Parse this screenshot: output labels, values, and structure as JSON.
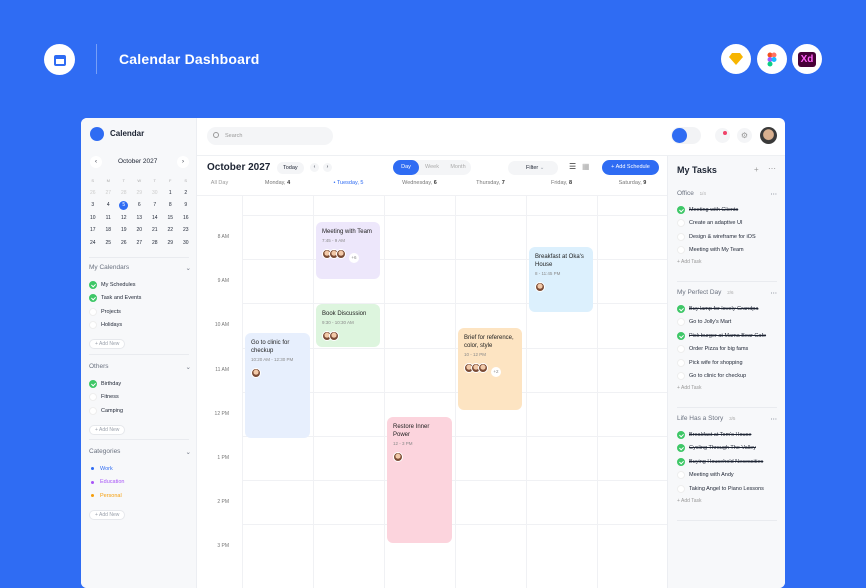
{
  "banner": {
    "title": "Calendar Dashboard",
    "tools": [
      {
        "name": "sketch",
        "color": "#f7b500"
      },
      {
        "name": "figma",
        "color": "#a259ff"
      },
      {
        "name": "xd",
        "label": "Xd",
        "color": "#ff61f6"
      }
    ]
  },
  "app": {
    "name": "Calendar",
    "search_placeholder": "Search"
  },
  "mini_calendar": {
    "month": "October 2027",
    "weekdays": [
      "S",
      "M",
      "T",
      "W",
      "T",
      "F",
      "S"
    ],
    "weeks": [
      [
        "26",
        "27",
        "28",
        "29",
        "30",
        "1",
        "2"
      ],
      [
        "3",
        "4",
        "5",
        "6",
        "7",
        "8",
        "9"
      ],
      [
        "10",
        "11",
        "12",
        "13",
        "14",
        "15",
        "16"
      ],
      [
        "17",
        "18",
        "19",
        "20",
        "21",
        "22",
        "23"
      ],
      [
        "24",
        "25",
        "26",
        "27",
        "28",
        "29",
        "30"
      ]
    ],
    "selected": "5"
  },
  "my_calendars": {
    "title": "My Calendars",
    "items": [
      {
        "label": "My Schedules",
        "checked": true
      },
      {
        "label": "Task and Events",
        "checked": true
      },
      {
        "label": "Projects",
        "checked": false
      },
      {
        "label": "Holidays",
        "checked": false
      }
    ],
    "add": "Add New"
  },
  "others": {
    "title": "Others",
    "items": [
      {
        "label": "Birthday",
        "checked": true
      },
      {
        "label": "Fitness",
        "checked": false
      },
      {
        "label": "Camping",
        "checked": false
      }
    ],
    "add": "Add New"
  },
  "categories": {
    "title": "Categories",
    "items": [
      {
        "label": "Work",
        "color": "#2f6cf3"
      },
      {
        "label": "Education",
        "color": "#a855f7"
      },
      {
        "label": "Personal",
        "color": "#f59e0b"
      }
    ],
    "add": "Add New"
  },
  "toolbar": {
    "month": "October 2027",
    "today": "Today",
    "views": [
      "Day",
      "Week",
      "Month"
    ],
    "active_view": "Day",
    "filter": "Filter",
    "add": "+ Add Schedule"
  },
  "days": {
    "all_day": "All Day",
    "cols": [
      {
        "name": "Monday,",
        "num": "4"
      },
      {
        "name": "• Tuesday, 5",
        "num": ""
      },
      {
        "name": "Wednesday,",
        "num": "6"
      },
      {
        "name": "Thursday,",
        "num": "7"
      },
      {
        "name": "Friday,",
        "num": "8"
      },
      {
        "name": "Saturday,",
        "num": "9"
      }
    ]
  },
  "times": [
    "8 AM",
    "9 AM",
    "10 AM",
    "11 AM",
    "12 PM",
    "1 PM",
    "2 PM",
    "3 PM"
  ],
  "events": [
    {
      "title": "Go to clinic for checkup",
      "time": "10:20 AM - 12:30 PM",
      "avatars": 1,
      "more": "",
      "color": "#e7effd"
    },
    {
      "title": "Meeting with Team",
      "time": "7:45 - 9 AM",
      "avatars": 3,
      "more": "+6",
      "color": "#ede7fb"
    },
    {
      "title": "Book Discussion",
      "time": "9:30 - 10:30 AM",
      "avatars": 2,
      "more": "",
      "color": "#ddf5de"
    },
    {
      "title": "Restore Inner Power",
      "time": "12 - 3 PM",
      "avatars": 1,
      "more": "",
      "color": "#fcd4dd"
    },
    {
      "title": "Brief for reference, color, style",
      "time": "10 - 12 PM",
      "avatars": 3,
      "more": "+2",
      "color": "#fde4c2"
    },
    {
      "title": "Breakfast at Oka's House",
      "time": "8 - 11:45 PM",
      "avatars": 1,
      "more": "",
      "color": "#dcf0fd"
    }
  ],
  "tasks": {
    "title": "My Tasks",
    "groups": [
      {
        "title": "Office",
        "count": "1/4",
        "items": [
          {
            "label": "Meeting with Clients",
            "done": true
          },
          {
            "label": "Create an adaptive UI",
            "done": false
          },
          {
            "label": "Design & wireframe for iOS",
            "done": false
          },
          {
            "label": "Meeting with My Team",
            "done": false
          }
        ],
        "add": "Add Task"
      },
      {
        "title": "My Perfect Day",
        "count": "2/6",
        "items": [
          {
            "label": "Buy lamp for lovely Grandpa",
            "done": true
          },
          {
            "label": "Go to Jolly's Mart",
            "done": false
          },
          {
            "label": "Pick burger at Mama Bear Cafe",
            "done": true
          },
          {
            "label": "Order Pizza for big fams",
            "done": false
          },
          {
            "label": "Pick wife for shopping",
            "done": false
          },
          {
            "label": "Go to clinic for checkup",
            "done": false
          }
        ],
        "add": "Add Task"
      },
      {
        "title": "Life Has a Story",
        "count": "3/5",
        "items": [
          {
            "label": "Breakfast at Tom's House",
            "done": true
          },
          {
            "label": "Cycling Through The Valley",
            "done": true
          },
          {
            "label": "Buying Household Necessities",
            "done": true
          },
          {
            "label": "Meeting with Andy",
            "done": false
          },
          {
            "label": "Taking Angel to Piano Lessons",
            "done": false
          }
        ],
        "add": "Add Task"
      }
    ]
  }
}
